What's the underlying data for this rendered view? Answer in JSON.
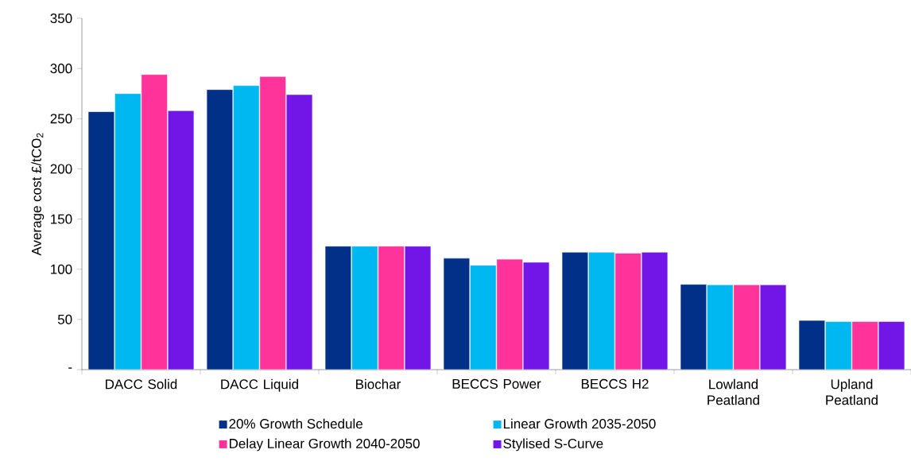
{
  "chart_data": {
    "type": "bar",
    "ylabel": "Average cost £/tCO$_{2}$",
    "categories": [
      "DACC Solid",
      "DACC Liquid",
      "Biochar",
      "BECCS Power",
      "BECCS H2",
      "Lowland Peatland",
      "Upland Peatland"
    ],
    "series": [
      {
        "name": "20% Growth Schedule",
        "color": "#003087",
        "values": [
          257,
          279,
          123,
          111,
          117,
          85,
          49
        ]
      },
      {
        "name": "Linear Growth 2035-2050",
        "color": "#00b8f1",
        "values": [
          275,
          283,
          123,
          104,
          117,
          84.5,
          48
        ]
      },
      {
        "name": "Delay Linear Growth 2040-2050",
        "color": "#ff3399",
        "values": [
          294,
          292,
          123,
          110,
          116,
          84.5,
          48
        ]
      },
      {
        "name": "Stylised S-Curve",
        "color": "#7216e8",
        "values": [
          258,
          274,
          123,
          107,
          117,
          84.5,
          48
        ]
      }
    ],
    "ylim": [
      0,
      350
    ],
    "yticks": [
      {
        "value": 0,
        "label": "-"
      },
      50,
      100,
      150,
      200,
      250,
      300,
      350
    ],
    "grid": false,
    "legend": "bottom"
  }
}
